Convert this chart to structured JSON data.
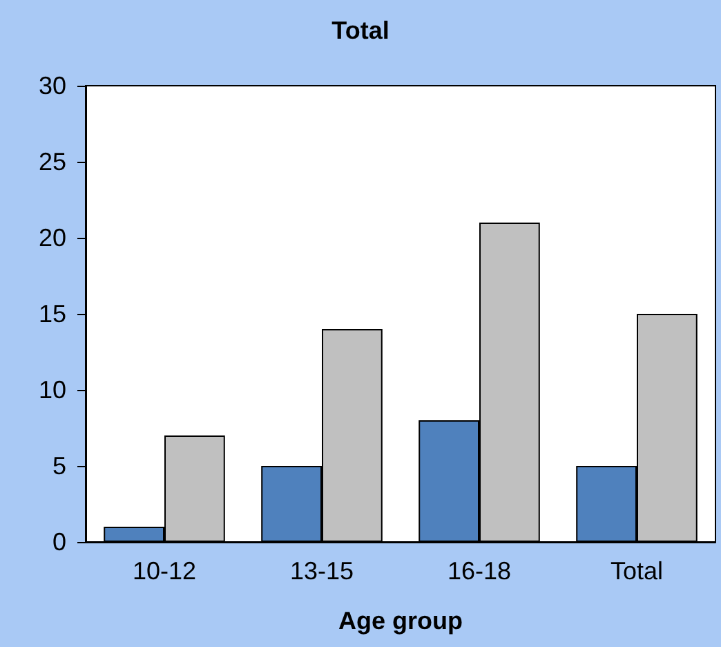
{
  "chart_data": {
    "type": "bar",
    "title": "Total",
    "xlabel": "Age group",
    "categories": [
      "10-12",
      "13-15",
      "16-18",
      "Total"
    ],
    "series": [
      {
        "color": "#4f81bd",
        "values": [
          1,
          5,
          8,
          5
        ]
      },
      {
        "color": "#c0c0c0",
        "values": [
          7,
          14,
          21,
          15
        ]
      }
    ],
    "ylim": [
      0,
      30
    ],
    "yticks": [
      0,
      5,
      10,
      15,
      20,
      25,
      30
    ],
    "grid": false
  }
}
